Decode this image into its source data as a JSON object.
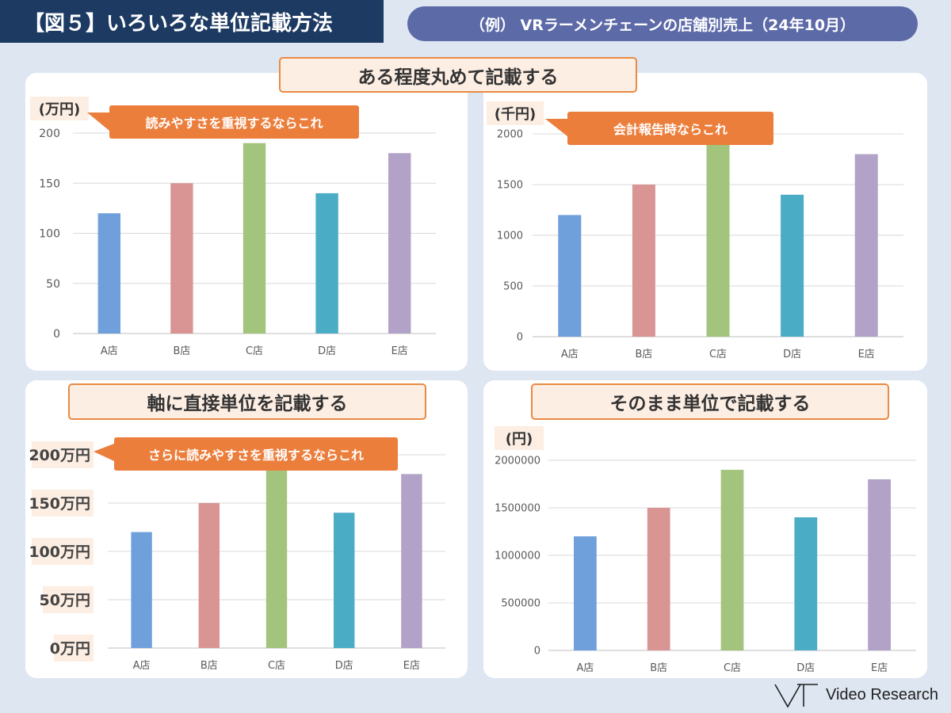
{
  "header": {
    "title": "【図５】いろいろな単位記載方法",
    "example": "（例） VRラーメンチェーンの店舗別売上（24年10月）"
  },
  "panels": [
    {
      "title": "ある程度丸めて記載する",
      "callout": "読みやすさを重視するならこれ",
      "unit_label": "(万円)"
    },
    {
      "title": "",
      "callout": "会計報告時ならこれ",
      "unit_label": "(千円)"
    },
    {
      "title": "軸に直接単位を記載する",
      "callout": "さらに読みやすさを重視するならこれ",
      "unit_label": ""
    },
    {
      "title": "そのまま単位で記載する",
      "callout": "",
      "unit_label": "(円)"
    }
  ],
  "colors": {
    "bars": [
      "#6fa0dc",
      "#d99594",
      "#a3c47c",
      "#4bacc6",
      "#b2a2c7"
    ],
    "accent": "#ec7e3c",
    "title_bg": "#1d3a63",
    "pill_bg": "#5d6aa8"
  },
  "chart_data": [
    {
      "type": "bar",
      "categories": [
        "A店",
        "B店",
        "C店",
        "D店",
        "E店"
      ],
      "values": [
        120,
        150,
        190,
        140,
        180
      ],
      "ylim": [
        0,
        200
      ],
      "yticks": [
        0,
        50,
        100,
        150,
        200
      ],
      "ytick_labels": [
        "0",
        "50",
        "100",
        "150",
        "200"
      ],
      "ylabel": "(万円)",
      "grid": true
    },
    {
      "type": "bar",
      "categories": [
        "A店",
        "B店",
        "C店",
        "D店",
        "E店"
      ],
      "values": [
        1200,
        1500,
        1900,
        1400,
        1800
      ],
      "ylim": [
        0,
        2000
      ],
      "yticks": [
        0,
        500,
        1000,
        1500,
        2000
      ],
      "ytick_labels": [
        "0",
        "500",
        "1000",
        "1500",
        "2000"
      ],
      "ylabel": "(千円)",
      "grid": true
    },
    {
      "type": "bar",
      "categories": [
        "A店",
        "B店",
        "C店",
        "D店",
        "E店"
      ],
      "values": [
        120,
        150,
        190,
        140,
        180
      ],
      "ylim": [
        0,
        200
      ],
      "yticks": [
        0,
        50,
        100,
        150,
        200
      ],
      "ytick_labels": [
        "0万円",
        "50万円",
        "100万円",
        "150万円",
        "200万円"
      ],
      "ylabel": "",
      "grid": true
    },
    {
      "type": "bar",
      "categories": [
        "A店",
        "B店",
        "C店",
        "D店",
        "E店"
      ],
      "values": [
        1200000,
        1500000,
        1900000,
        1400000,
        1800000
      ],
      "ylim": [
        0,
        2000000
      ],
      "yticks": [
        0,
        500000,
        1000000,
        1500000,
        2000000
      ],
      "ytick_labels": [
        "0",
        "500000",
        "1000000",
        "1500000",
        "2000000"
      ],
      "ylabel": "(円)",
      "grid": true
    }
  ],
  "footer": {
    "logo_text": "Video Research"
  }
}
